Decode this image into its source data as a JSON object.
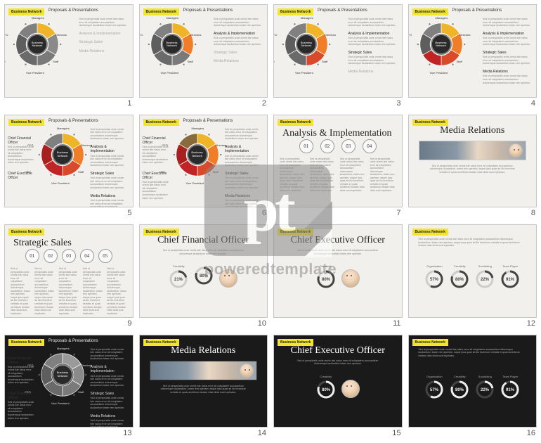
{
  "watermark": {
    "logo": "pt",
    "text": "poweredtemplate"
  },
  "lorem_short": "Sed ut perspiciatis unde omnis iste natus error sit voluptatem accusantium doloremque laudantium totam rem aperiam.",
  "lorem_block": "Sed ut perspiciatis unde omnis iste natus error sit voluptatem accusantium doloremque laudantium, totam rem aperiam, eaque ipsa quae ab illo inventore veritatis et quasi architecto beatae vitae dicta sunt explicabo.",
  "tag_label": "Business Network",
  "wheel": {
    "center_label": "Business\nNetwork",
    "segments": [
      {
        "label": "Managers",
        "color": "#f0b428",
        "gray": "#9a9a9a"
      },
      {
        "label": "Directors",
        "color": "#f07d28",
        "gray": "#8a8a8a"
      },
      {
        "label": "Staff",
        "color": "#d84a2a",
        "gray": "#7a7a7a"
      },
      {
        "label": "Vice President",
        "color": "#c02424",
        "gray": "#6a6a6a"
      },
      {
        "label": "CEO",
        "color": "#a82020",
        "gray": "#5e5e5e"
      },
      {
        "label": "CFO",
        "color": "#8a6a3a",
        "gray": "#808080"
      }
    ]
  },
  "side_items": [
    {
      "title": "Proposals & Presentations"
    },
    {
      "title": "Analysis & Implementation"
    },
    {
      "title": "Strategic Sales"
    },
    {
      "title": "Media Relations"
    }
  ],
  "left_items": [
    {
      "title": "Chief Financial Officer"
    },
    {
      "title": "Chief Executive Officer"
    }
  ],
  "slides": [
    {
      "n": 1,
      "type": "wheel",
      "dark": false,
      "colored_upto": 1,
      "side_upto": 1
    },
    {
      "n": 2,
      "type": "wheel",
      "dark": false,
      "colored_upto": 2,
      "side_upto": 2
    },
    {
      "n": 3,
      "type": "wheel",
      "dark": false,
      "colored_upto": 3,
      "side_upto": 3
    },
    {
      "n": 4,
      "type": "wheel",
      "dark": false,
      "colored_upto": 4,
      "side_upto": 4
    },
    {
      "n": 5,
      "type": "wheel",
      "dark": false,
      "colored_upto": 5,
      "side_upto": 4,
      "left_upto": 1
    },
    {
      "n": 6,
      "type": "wheel",
      "dark": false,
      "colored_upto": 6,
      "side_upto": 4,
      "left_upto": 2
    },
    {
      "n": 7,
      "type": "steps",
      "dark": false,
      "title": "Analysis & Implementation",
      "steps": [
        "01",
        "02",
        "03",
        "04"
      ]
    },
    {
      "n": 8,
      "type": "media",
      "dark": false,
      "title": "Media Relations"
    },
    {
      "n": 9,
      "type": "steps",
      "dark": false,
      "title": "Strategic Sales",
      "steps": [
        "01",
        "02",
        "03",
        "04",
        "05"
      ]
    },
    {
      "n": 10,
      "type": "cfo",
      "dark": false,
      "title": "Chief Financial Officer",
      "donuts": [
        {
          "label": "Creativity",
          "value": 21,
          "color": "#444"
        },
        {
          "label": "",
          "value": 80,
          "color": "#444"
        }
      ]
    },
    {
      "n": 11,
      "type": "ceo",
      "dark": false,
      "title": "Chief Executive Officer",
      "donuts": [
        {
          "label": "Creativity",
          "value": 80,
          "color": "#444"
        }
      ]
    },
    {
      "n": 12,
      "type": "stats",
      "dark": false,
      "donuts": [
        {
          "label": "Organization",
          "value": 57,
          "color": "#444"
        },
        {
          "label": "Creativity",
          "value": 80,
          "color": "#444"
        },
        {
          "label": "Socializing",
          "value": 22,
          "color": "#444"
        },
        {
          "label": "Team Player",
          "value": 91,
          "color": "#444"
        }
      ]
    },
    {
      "n": 13,
      "type": "wheel",
      "dark": true,
      "colored_upto": 0,
      "side_upto": 4,
      "left_upto": 2
    },
    {
      "n": 14,
      "type": "media",
      "dark": true,
      "title": "Media Relations"
    },
    {
      "n": 15,
      "type": "ceo",
      "dark": true,
      "title": "Chief Executive Officer",
      "donuts": [
        {
          "label": "Creativity",
          "value": 80,
          "color": "#eee"
        }
      ]
    },
    {
      "n": 16,
      "type": "stats",
      "dark": true,
      "donuts": [
        {
          "label": "Organization",
          "value": 57,
          "color": "#eee"
        },
        {
          "label": "Creativity",
          "value": 80,
          "color": "#eee"
        },
        {
          "label": "Socializing",
          "value": 22,
          "color": "#eee"
        },
        {
          "label": "Team Player",
          "value": 91,
          "color": "#eee"
        }
      ]
    }
  ]
}
